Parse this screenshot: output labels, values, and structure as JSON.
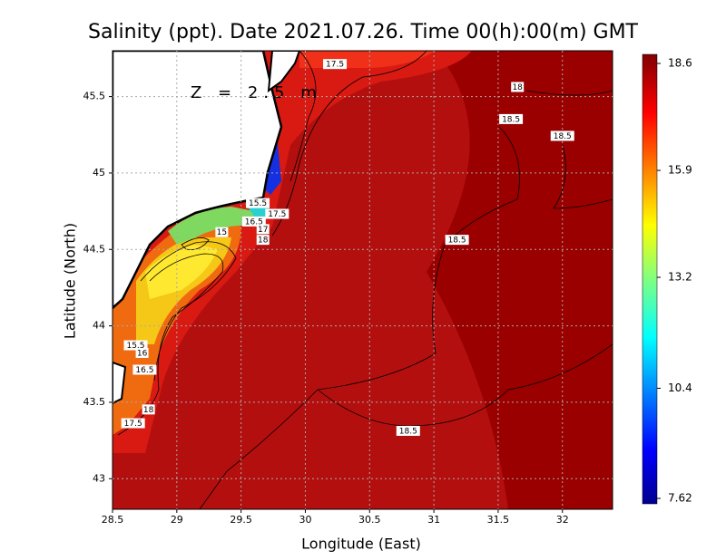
{
  "title": "Salinity (ppt). Date 2021.07.26. Time 00(h):00(m) GMT",
  "annotation": "Z = 2.5 m",
  "x_axis": {
    "label": "Longitude (East)",
    "lim": [
      28.5,
      32.39
    ],
    "ticks": [
      28.5,
      29,
      29.5,
      30,
      30.5,
      31,
      31.5,
      32
    ]
  },
  "y_axis": {
    "label": "Latitude (North)",
    "lim": [
      42.8,
      45.8
    ],
    "ticks": [
      43,
      43.5,
      44,
      44.5,
      45,
      45.5
    ]
  },
  "colorbar": {
    "lim": [
      7.62,
      18.6
    ],
    "ticks": [
      7.62,
      10.4,
      13.2,
      15.9,
      18.6
    ]
  },
  "contour_labels": [
    {
      "value": 17.5,
      "lon": 30.23,
      "lat": 45.71
    },
    {
      "value": 18,
      "lon": 31.65,
      "lat": 45.56
    },
    {
      "value": 18.5,
      "lon": 31.6,
      "lat": 45.35
    },
    {
      "value": 18.5,
      "lon": 32.0,
      "lat": 45.24
    },
    {
      "value": 15.5,
      "lon": 29.63,
      "lat": 44.8
    },
    {
      "value": 17.5,
      "lon": 29.78,
      "lat": 44.73
    },
    {
      "value": 16.5,
      "lon": 29.6,
      "lat": 44.68
    },
    {
      "value": 17,
      "lon": 29.67,
      "lat": 44.63
    },
    {
      "value": 18,
      "lon": 29.67,
      "lat": 44.56
    },
    {
      "value": 15,
      "lon": 29.35,
      "lat": 44.61
    },
    {
      "value": 18.5,
      "lon": 31.18,
      "lat": 44.56
    },
    {
      "value": 15.5,
      "lon": 28.68,
      "lat": 43.87
    },
    {
      "value": 16,
      "lon": 28.73,
      "lat": 43.82
    },
    {
      "value": 16.5,
      "lon": 28.75,
      "lat": 43.71
    },
    {
      "value": 18,
      "lon": 28.78,
      "lat": 43.45
    },
    {
      "value": 17.5,
      "lon": 28.66,
      "lat": 43.36
    },
    {
      "value": 18.5,
      "lon": 30.8,
      "lat": 43.31
    }
  ]
}
